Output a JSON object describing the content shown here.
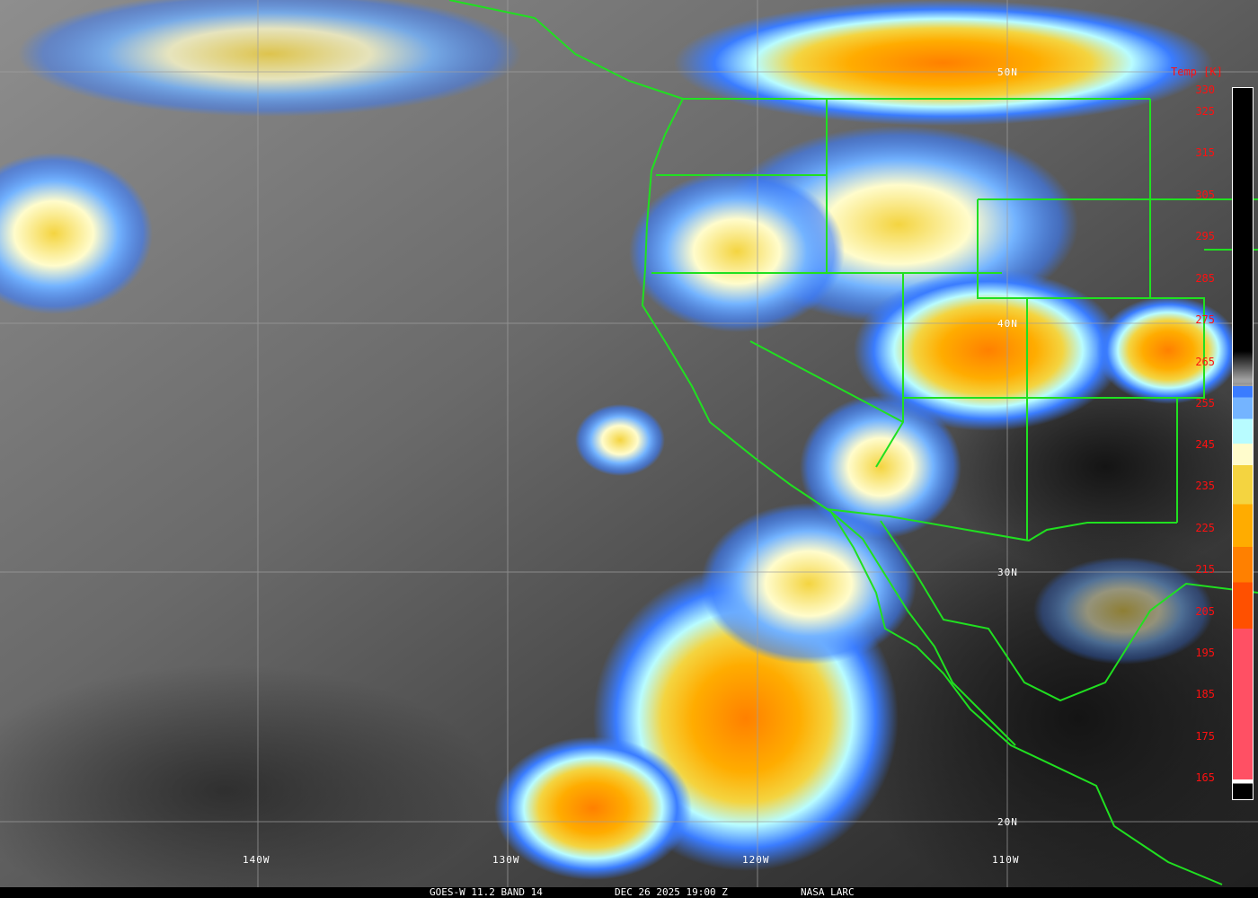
{
  "caption": {
    "satellite": "GOES-W 11.2 BAND 14",
    "datetime": "DEC 26 2025 19:00 Z",
    "credit": "NASA LARC"
  },
  "latitude_labels": [
    "50N",
    "40N",
    "30N",
    "20N"
  ],
  "longitude_labels": [
    "140W",
    "130W",
    "120W",
    "110W"
  ],
  "colorbar": {
    "title": "Temp [K]",
    "ticks": [
      "330",
      "325",
      "315",
      "305",
      "295",
      "285",
      "275",
      "265",
      "255",
      "245",
      "235",
      "225",
      "215",
      "205",
      "195",
      "185",
      "175",
      "165"
    ],
    "colors": {
      "warm": "#000000",
      "mid": "#a0a0a0",
      "blue": "#3a7cff",
      "light_blue": "#74b4ff",
      "cyan": "#b8fcff",
      "pale_yellow": "#fffccc",
      "yellow": "#f4d440",
      "orange": "#ffac00",
      "dark_orange": "#ff8000",
      "red_orange": "#ff5000",
      "pink": "#ff5064"
    }
  },
  "map_colors": {
    "borders": "#20e020",
    "grid": "#a0a0a0"
  }
}
